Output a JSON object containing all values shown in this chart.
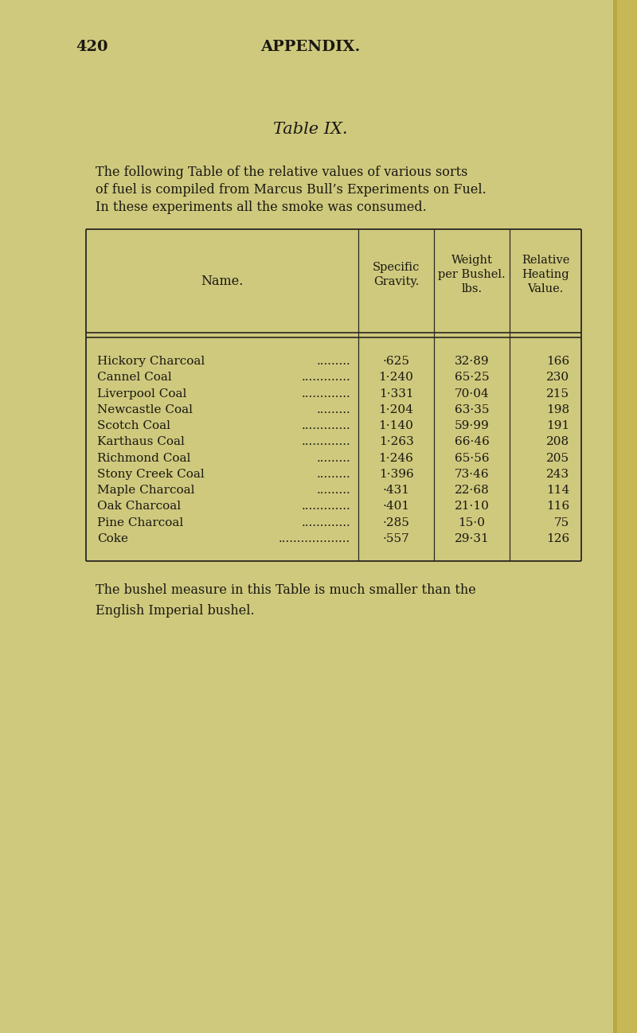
{
  "bg_color": "#cfc97e",
  "binding_color": "#b8a850",
  "page_number": "420",
  "header": "APPENDIX.",
  "table_title": "Table IX.",
  "intro_line1": "The following Table of the relative values of various sorts",
  "intro_line2": "of fuel is compiled from Marcus Bull’s Experiments on Fuel.",
  "intro_line3": "In these experiments all the smoke was consumed.",
  "col_headers": [
    "Name.",
    "Specific\nGravity.",
    "Weight\nper Bushel.\nlbs.",
    "Relative\nHeating\nValue."
  ],
  "row_names": [
    "Hickory Charcoal",
    "Cannel Coal",
    "Liverpool Coal",
    "Newcastle Coal",
    "Scotch Coal",
    "Karthaus Coal",
    "Richmond Coal",
    "Stony Creek Coal",
    "Maple Charcoal",
    "Oak Charcoal",
    "Pine Charcoal",
    "Coke"
  ],
  "row_dots": [
    ".........",
    ".............",
    ".............",
    ".........",
    ".............",
    ".............",
    ".........",
    ".........",
    ".........",
    ".............",
    ".............",
    "..................."
  ],
  "col2": [
    "·625",
    "1·240",
    "1·331",
    "1·204",
    "1·140",
    "1·263",
    "1·246",
    "1·396",
    "·431",
    "·401",
    "·285",
    "·557"
  ],
  "col3": [
    "32·89",
    "65·25",
    "70·04",
    "63·35",
    "59·99",
    "66·46",
    "65·56",
    "73·46",
    "22·68",
    "21·10",
    "15·0",
    "29·31"
  ],
  "col4": [
    "166",
    "230",
    "215",
    "198",
    "191",
    "208",
    "205",
    "243",
    "114",
    "116",
    "75",
    "126"
  ],
  "footer_text": "The bushel measure in this Table is much smaller than the\nEnglish Imperial bushel.",
  "text_color": "#1a1810",
  "line_color": "#2a2820"
}
